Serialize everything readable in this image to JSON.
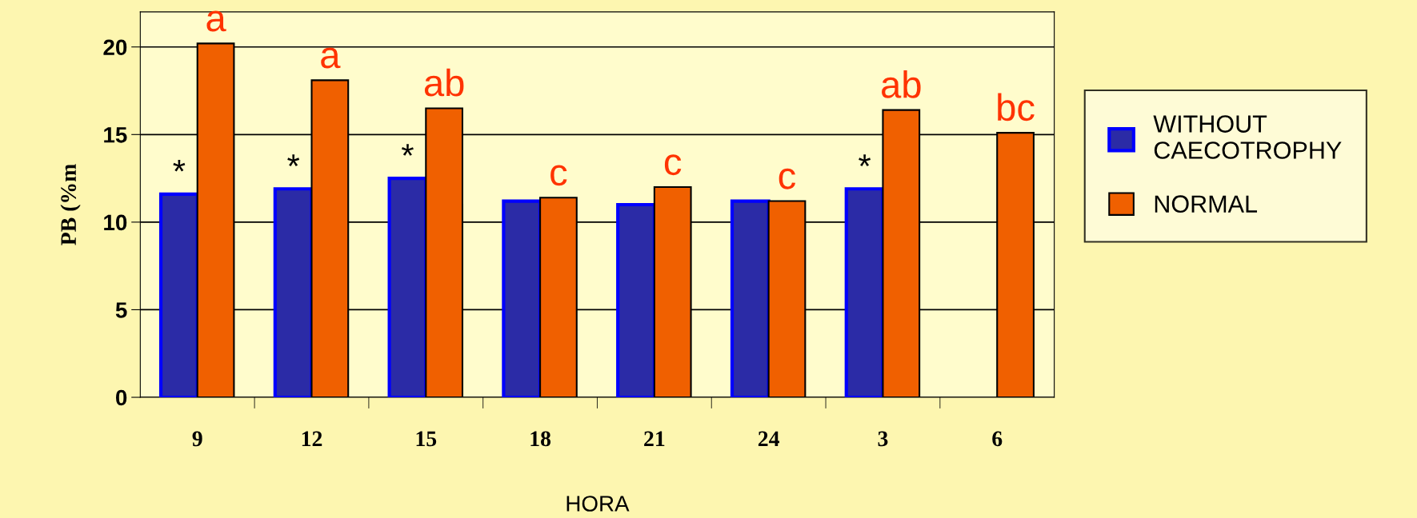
{
  "chart_data": {
    "type": "bar",
    "xlabel": "HORA",
    "ylabel": "PB (%m",
    "categories": [
      "9",
      "12",
      "15",
      "18",
      "21",
      "24",
      "3",
      "6"
    ],
    "series": [
      {
        "name": "WITHOUT CAECOTROPHY",
        "color": "#2b2ba6",
        "values": [
          11.6,
          11.9,
          12.5,
          11.2,
          11.0,
          11.2,
          11.9,
          null
        ]
      },
      {
        "name": "NORMAL",
        "color": "#f06000",
        "values": [
          20.2,
          18.1,
          16.5,
          11.4,
          12.0,
          11.2,
          16.4,
          15.1
        ]
      }
    ],
    "ylim": [
      0,
      22
    ],
    "yticks": [
      0,
      5,
      10,
      15,
      20
    ],
    "grid": "y",
    "legend": "right",
    "annotations": [
      {
        "text": "*",
        "x": "9",
        "y": 11.6
      },
      {
        "text": "a",
        "x": "9",
        "y": 20.2
      },
      {
        "text": "*",
        "x": "12",
        "y": 11.9
      },
      {
        "text": "a",
        "x": "12",
        "y": 18.1
      },
      {
        "text": "*",
        "x": "15",
        "y": 12.5
      },
      {
        "text": "ab",
        "x": "15",
        "y": 16.5
      },
      {
        "text": "c",
        "x": "18",
        "y": 11.4
      },
      {
        "text": "c",
        "x": "21",
        "y": 12.0
      },
      {
        "text": "c",
        "x": "24",
        "y": 11.2
      },
      {
        "text": "*",
        "x": "3",
        "y": 11.9
      },
      {
        "text": "ab",
        "x": "3",
        "y": 16.4
      },
      {
        "text": "bc",
        "x": "6",
        "y": 15.1
      }
    ]
  }
}
